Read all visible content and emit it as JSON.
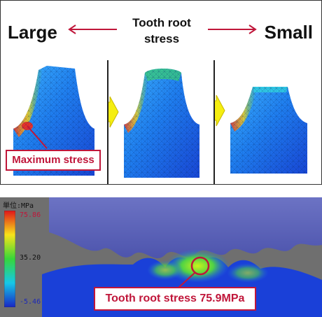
{
  "header": {
    "left_label": "Large",
    "center_label_line1": "Tooth root",
    "center_label_line2": "stress",
    "right_label": "Small",
    "arrow_color": "#c0163a"
  },
  "panels": {
    "max_stress_label": "Maximum stress",
    "arrow_color": "#f5ee10"
  },
  "simulation": {
    "scale_title": "単位:MPa",
    "scale_max": "75.86",
    "scale_mid": "35.20",
    "scale_min": "-5.46",
    "callout_label": "Tooth root stress 75.9MPa",
    "accent_color": "#c0163a"
  }
}
